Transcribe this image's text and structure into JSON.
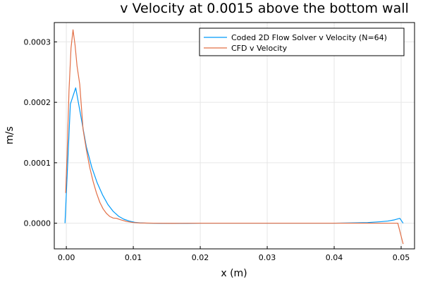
{
  "chart_data": {
    "type": "line",
    "title": "v Velocity at 0.0015 above the bottom wall",
    "xlabel": "x (m)",
    "ylabel": "m/s",
    "xlim": [
      -0.0018,
      0.052
    ],
    "ylim": [
      -4.25e-05,
      0.000332
    ],
    "x_ticks": [
      0.0,
      0.01,
      0.02,
      0.03,
      0.04,
      0.05
    ],
    "x_tick_labels": [
      "0.00",
      "0.01",
      "0.02",
      "0.03",
      "0.04",
      "0.05"
    ],
    "y_ticks": [
      0.0,
      0.0001,
      0.0002,
      0.0003
    ],
    "y_tick_labels": [
      "0.0000",
      "0.0001",
      "0.0002",
      "0.0003"
    ],
    "grid": true,
    "legend_position": "top-right",
    "series": [
      {
        "name": "Coded 2D Flow Solver v Velocity (N=64)",
        "color": "#009af9",
        "x": [
          -0.0002,
          0.0006,
          0.0014,
          0.0022,
          0.003,
          0.0038,
          0.0046,
          0.0054,
          0.0062,
          0.007,
          0.0078,
          0.0086,
          0.0094,
          0.0102,
          0.011,
          0.012,
          0.014,
          0.016,
          0.018,
          0.02,
          0.025,
          0.03,
          0.035,
          0.04,
          0.043,
          0.045,
          0.047,
          0.048,
          0.049,
          0.0498,
          0.0503
        ],
        "values": [
          0.0,
          0.000197,
          0.000224,
          0.000175,
          0.000126,
          9.25e-05,
          6.7e-05,
          4.7e-05,
          3.1e-05,
          1.95e-05,
          1.15e-05,
          6.5e-06,
          3.5e-06,
          1.5e-06,
          5e-07,
          0.0,
          -3e-07,
          -3e-07,
          -2e-07,
          0.0,
          0.0,
          0.0,
          0.0,
          0.0,
          5e-07,
          1e-06,
          2.5e-06,
          3.5e-06,
          5.5e-06,
          8e-06,
          0.0
        ]
      },
      {
        "name": "CFD v Velocity",
        "color": "#e26f46",
        "x": [
          -0.0001,
          0.0001,
          0.0004,
          0.0007,
          0.001,
          0.0013,
          0.0016,
          0.002,
          0.0025,
          0.003,
          0.0035,
          0.004,
          0.0045,
          0.005,
          0.0055,
          0.006,
          0.0065,
          0.007,
          0.0075,
          0.008,
          0.009,
          0.01,
          0.011,
          0.013,
          0.016,
          0.02,
          0.025,
          0.03,
          0.035,
          0.04,
          0.045,
          0.048,
          0.049,
          0.0495,
          0.0503
        ],
        "values": [
          5e-05,
          0.00011,
          0.00022,
          0.00029,
          0.00032,
          0.000295,
          0.00026,
          0.00023,
          0.000155,
          0.000121,
          9.2e-05,
          6.9e-05,
          5e-05,
          3.45e-05,
          2.35e-05,
          1.6e-05,
          1.1e-05,
          8.5e-06,
          8e-06,
          6e-06,
          2.8e-06,
          1e-06,
          4e-07,
          0.0,
          -2e-07,
          0.0,
          0.0,
          0.0,
          0.0,
          0.0,
          0.0,
          0.0,
          0.0,
          0.0,
          -3.45e-05
        ]
      }
    ]
  }
}
